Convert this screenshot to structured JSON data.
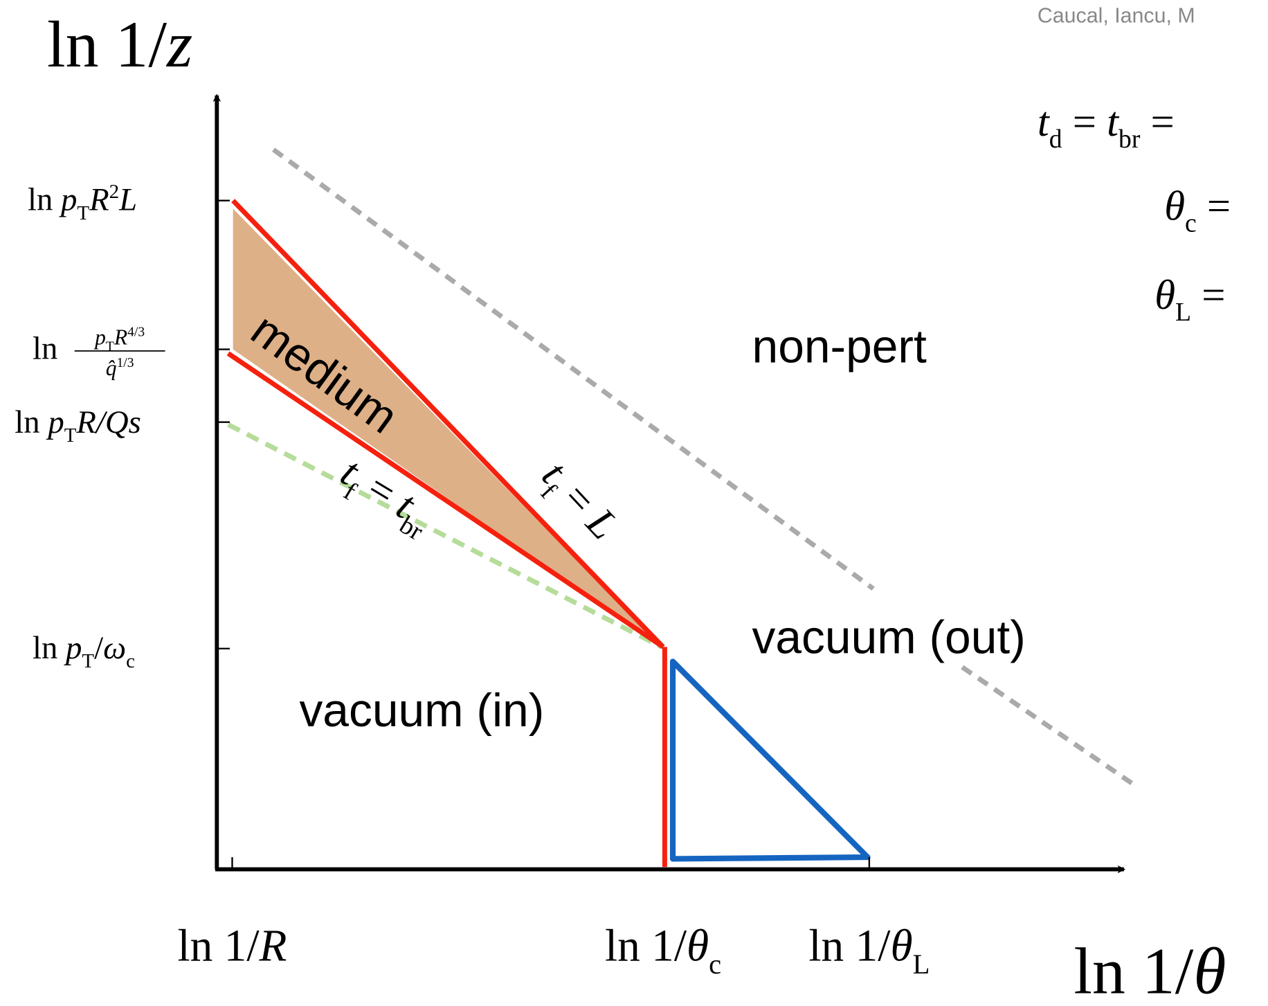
{
  "citation": "Caucal, Iancu, M",
  "axes": {
    "y_title": [
      {
        "text": "ln 1/"
      },
      {
        "it": "z"
      }
    ],
    "x_title": [
      {
        "text": "ln 1/"
      },
      {
        "it": "θ"
      }
    ]
  },
  "y_ticks": [
    [
      {
        "text": "ln "
      },
      {
        "it": "p"
      },
      {
        "sub": "T"
      },
      {
        "it": "R"
      },
      {
        "sup": "2"
      },
      {
        "it": "L"
      }
    ],
    {
      "prefix": [
        {
          "text": "ln "
        }
      ],
      "numerator": [
        {
          "it": "p"
        },
        {
          "sub": "T"
        },
        {
          "it": "R"
        },
        {
          "sup": "4/3"
        }
      ],
      "denominator": [
        {
          "it": "q̂"
        },
        {
          "sup": "1/3"
        }
      ]
    },
    [
      {
        "text": "ln "
      },
      {
        "it": "p"
      },
      {
        "sub": "T"
      },
      {
        "it": "R/Qs"
      }
    ],
    [
      {
        "text": "ln "
      },
      {
        "it": "p"
      },
      {
        "sub": "T"
      },
      {
        "text": "/"
      },
      {
        "it": "ω"
      },
      {
        "sub": "c"
      }
    ]
  ],
  "x_ticks": [
    [
      {
        "text": "ln 1/"
      },
      {
        "it": "R"
      }
    ],
    [
      {
        "text": "ln 1/"
      },
      {
        "it": "θ"
      },
      {
        "sub": "c"
      }
    ],
    [
      {
        "text": "ln 1/"
      },
      {
        "it": "θ"
      },
      {
        "sub": "L"
      }
    ]
  ],
  "equations": [
    [
      {
        "it": "t"
      },
      {
        "sub": "d"
      },
      {
        "text": " = "
      },
      {
        "it": "t"
      },
      {
        "sub": "br"
      },
      {
        "text": " ="
      }
    ],
    [
      {
        "it": "θ"
      },
      {
        "sub": "c"
      },
      {
        "text": " ="
      }
    ],
    [
      {
        "it": "θ"
      },
      {
        "sub": "L"
      },
      {
        "text": " ="
      }
    ]
  ],
  "regions": [
    "non-pert",
    "vacuum (out)",
    "vacuum (in)",
    "medium"
  ],
  "curve_labels": [
    [
      {
        "it": "t"
      },
      {
        "sub": "f"
      },
      {
        "text": " = "
      },
      {
        "it": "L"
      }
    ],
    [
      {
        "it": "t"
      },
      {
        "sub": "f"
      },
      {
        "text": " = "
      },
      {
        "it": "t"
      },
      {
        "sub": "br"
      }
    ]
  ]
}
